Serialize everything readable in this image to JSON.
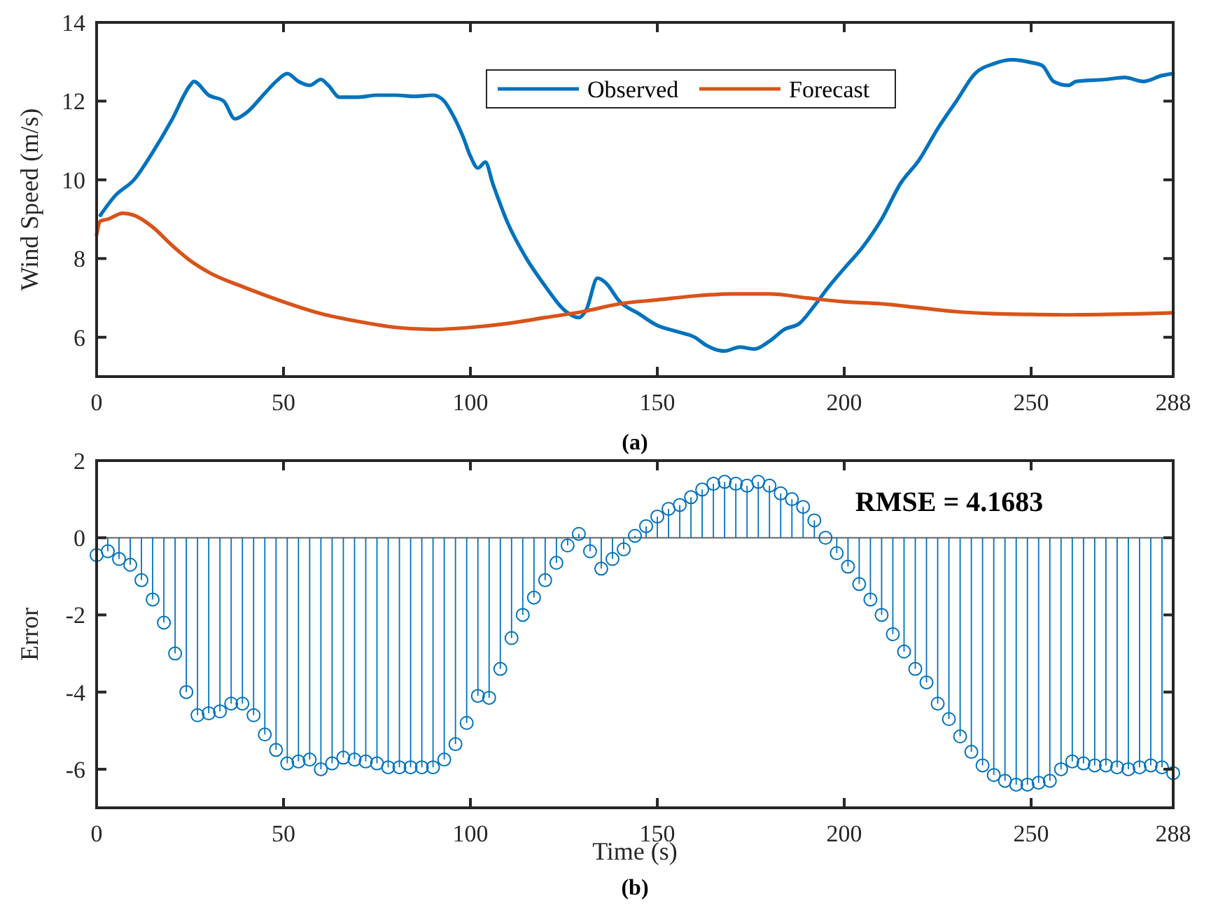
{
  "chart_data": [
    {
      "type": "line",
      "ylabel": "Wind Speed (m/s)",
      "subtitle": "(a)",
      "xlim": [
        0,
        288
      ],
      "xticks": [
        0,
        50,
        100,
        150,
        200,
        250,
        288
      ],
      "ylim": [
        5,
        14
      ],
      "yticks": [
        6,
        8,
        10,
        12,
        14
      ],
      "legend": "top",
      "grid": false,
      "line_style": "solid",
      "series": [
        {
          "name": "Observed",
          "color": "#0072bd",
          "x": [
            1,
            5,
            10,
            15,
            20,
            25,
            26,
            30,
            34,
            37,
            40,
            45,
            48,
            51,
            54,
            57,
            60,
            62,
            65,
            70,
            75,
            80,
            85,
            90,
            93,
            95,
            98,
            100,
            102,
            104,
            106,
            110,
            115,
            120,
            125,
            129,
            131,
            134,
            136,
            140,
            145,
            150,
            155,
            160,
            163,
            168,
            172,
            176,
            180,
            184,
            188,
            192,
            196,
            200,
            205,
            210,
            215,
            220,
            225,
            230,
            235,
            240,
            245,
            250,
            253,
            256,
            260,
            262,
            270,
            275,
            280,
            285,
            288
          ],
          "values": [
            9.1,
            9.6,
            10.0,
            10.7,
            11.5,
            12.4,
            12.5,
            12.15,
            12.0,
            11.55,
            11.7,
            12.2,
            12.5,
            12.7,
            12.5,
            12.4,
            12.55,
            12.4,
            12.1,
            12.1,
            12.15,
            12.15,
            12.12,
            12.15,
            12.0,
            11.7,
            11.1,
            10.6,
            10.3,
            10.45,
            9.9,
            8.9,
            8.0,
            7.3,
            6.7,
            6.5,
            6.7,
            7.5,
            7.4,
            6.9,
            6.6,
            6.3,
            6.15,
            6.0,
            5.8,
            5.65,
            5.75,
            5.7,
            5.9,
            6.2,
            6.35,
            6.8,
            7.3,
            7.75,
            8.3,
            9.0,
            9.9,
            10.5,
            11.3,
            12.0,
            12.7,
            12.95,
            13.05,
            12.98,
            12.9,
            12.5,
            12.4,
            12.5,
            12.55,
            12.6,
            12.5,
            12.65,
            12.7
          ]
        },
        {
          "name": "Forecast",
          "color": "#d95319",
          "x": [
            0,
            1,
            3,
            7,
            10,
            15,
            20,
            25,
            30,
            40,
            50,
            60,
            70,
            80,
            90,
            100,
            110,
            120,
            130,
            140,
            150,
            160,
            170,
            180,
            190,
            200,
            210,
            220,
            230,
            240,
            250,
            260,
            270,
            280,
            288
          ],
          "values": [
            8.6,
            8.95,
            9.0,
            9.15,
            9.1,
            8.8,
            8.35,
            7.95,
            7.65,
            7.25,
            6.9,
            6.6,
            6.4,
            6.25,
            6.2,
            6.25,
            6.35,
            6.5,
            6.65,
            6.85,
            6.95,
            7.05,
            7.1,
            7.1,
            7.0,
            6.9,
            6.85,
            6.75,
            6.65,
            6.6,
            6.58,
            6.57,
            6.58,
            6.6,
            6.62
          ]
        }
      ]
    },
    {
      "type": "lollipop",
      "xlabel": "Time (s)",
      "ylabel": "Error",
      "subtitle": "(b)",
      "annotations": [
        "RMSE = 4.1683"
      ],
      "xlim": [
        0,
        288
      ],
      "xticks": [
        0,
        50,
        100,
        150,
        200,
        250,
        288
      ],
      "ylim": [
        -7,
        2
      ],
      "yticks": [
        -6,
        -4,
        -2,
        0,
        2
      ],
      "grid": false,
      "marker": "circle",
      "series": [
        {
          "color": "#0072bd",
          "x": [
            0,
            3,
            6,
            9,
            12,
            15,
            18,
            21,
            24,
            27,
            30,
            33,
            36,
            39,
            42,
            45,
            48,
            51,
            54,
            57,
            60,
            63,
            66,
            69,
            72,
            75,
            78,
            81,
            84,
            87,
            90,
            93,
            96,
            99,
            102,
            105,
            108,
            111,
            114,
            117,
            120,
            123,
            126,
            129,
            132,
            135,
            138,
            141,
            144,
            147,
            150,
            153,
            156,
            159,
            162,
            165,
            168,
            171,
            174,
            177,
            180,
            183,
            186,
            189,
            192,
            195,
            198,
            201,
            204,
            207,
            210,
            213,
            216,
            219,
            222,
            225,
            228,
            231,
            234,
            237,
            240,
            243,
            246,
            249,
            252,
            255,
            258,
            261,
            264,
            267,
            270,
            273,
            276,
            279,
            282,
            285,
            288
          ],
          "values": [
            -0.45,
            -0.35,
            -0.55,
            -0.7,
            -1.1,
            -1.6,
            -2.2,
            -3.0,
            -4.0,
            -4.6,
            -4.55,
            -4.5,
            -4.3,
            -4.3,
            -4.6,
            -5.1,
            -5.5,
            -5.85,
            -5.8,
            -5.75,
            -6.0,
            -5.85,
            -5.7,
            -5.75,
            -5.8,
            -5.85,
            -5.95,
            -5.95,
            -5.95,
            -5.95,
            -5.95,
            -5.75,
            -5.35,
            -4.8,
            -4.1,
            -4.15,
            -3.4,
            -2.6,
            -2.0,
            -1.55,
            -1.1,
            -0.65,
            -0.2,
            0.1,
            -0.35,
            -0.8,
            -0.55,
            -0.3,
            0.05,
            0.3,
            0.55,
            0.75,
            0.85,
            1.05,
            1.25,
            1.4,
            1.45,
            1.4,
            1.35,
            1.45,
            1.35,
            1.15,
            1.0,
            0.8,
            0.45,
            0.0,
            -0.4,
            -0.75,
            -1.2,
            -1.6,
            -2.0,
            -2.5,
            -2.95,
            -3.4,
            -3.75,
            -4.3,
            -4.7,
            -5.15,
            -5.55,
            -5.9,
            -6.15,
            -6.3,
            -6.4,
            -6.4,
            -6.35,
            -6.3,
            -6.0,
            -5.8,
            -5.85,
            -5.9,
            -5.9,
            -5.95,
            -6.0,
            -5.95,
            -5.9,
            -5.95,
            -6.1
          ]
        }
      ]
    }
  ]
}
